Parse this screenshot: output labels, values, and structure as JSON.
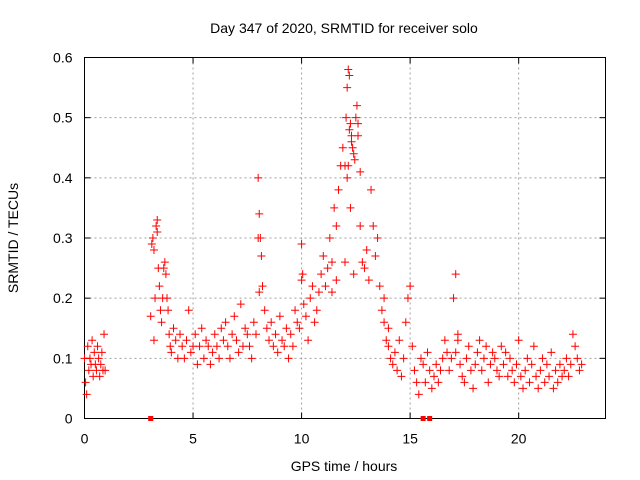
{
  "chart_data": {
    "type": "scatter",
    "title": "Day 347 of 2020, SRMTID for receiver solo",
    "xlabel": "GPS time / hours",
    "ylabel": "SRMTID / TECUs",
    "xlim": [
      0,
      24
    ],
    "ylim": [
      0,
      0.6
    ],
    "xticks": [
      0,
      5,
      10,
      15,
      20
    ],
    "xtick_labels": [
      "0",
      "5",
      "10",
      "15",
      "20"
    ],
    "yticks": [
      0,
      0.1,
      0.2,
      0.3,
      0.4,
      0.5,
      0.6
    ],
    "ytick_labels": [
      "0",
      "0.1",
      "0.2",
      "0.3",
      "0.4",
      "0.5",
      "0.6"
    ],
    "grid": true,
    "marker": "+",
    "color": "#ff0000",
    "series": [
      {
        "name": "SRMTID",
        "x": [
          0.0,
          0.05,
          0.1,
          0.15,
          0.2,
          0.25,
          0.3,
          0.35,
          0.4,
          0.45,
          0.5,
          0.55,
          0.6,
          0.65,
          0.7,
          0.75,
          0.8,
          0.85,
          0.9,
          0.95,
          3.05,
          3.1,
          3.15,
          3.2,
          3.25,
          3.3,
          3.35,
          3.4,
          3.45,
          3.5,
          3.55,
          3.6,
          3.65,
          3.7,
          3.75,
          3.8,
          3.85,
          3.9,
          3.95,
          4.0,
          4.1,
          4.2,
          4.3,
          4.4,
          4.5,
          4.6,
          4.7,
          4.8,
          4.9,
          5.0,
          5.1,
          5.2,
          5.3,
          5.4,
          5.5,
          5.6,
          5.7,
          5.8,
          5.9,
          6.0,
          6.1,
          6.2,
          6.3,
          6.4,
          6.5,
          6.6,
          6.7,
          6.8,
          6.9,
          7.0,
          7.1,
          7.2,
          7.3,
          7.4,
          7.5,
          7.6,
          7.7,
          7.8,
          7.9,
          8.0,
          8.05,
          8.1,
          8.15,
          8.2,
          8.3,
          8.4,
          8.5,
          8.6,
          8.7,
          8.8,
          8.9,
          9.0,
          9.1,
          9.2,
          9.3,
          9.4,
          9.5,
          9.6,
          9.7,
          9.8,
          9.9,
          10.0,
          10.05,
          10.1,
          10.2,
          10.3,
          10.4,
          10.5,
          10.6,
          10.7,
          10.8,
          10.9,
          11.0,
          11.1,
          11.2,
          11.3,
          11.4,
          11.5,
          11.6,
          11.7,
          11.8,
          11.9,
          12.0,
          12.05,
          12.1,
          12.15,
          12.2,
          12.25,
          12.3,
          12.35,
          12.4,
          12.45,
          12.5,
          12.55,
          12.6,
          12.7,
          12.8,
          12.9,
          13.0,
          13.1,
          13.2,
          13.3,
          13.4,
          13.5,
          13.6,
          13.7,
          13.8,
          13.9,
          14.0,
          14.1,
          14.2,
          14.3,
          14.4,
          14.5,
          14.6,
          14.7,
          14.8,
          14.9,
          15.0,
          15.1,
          15.2,
          15.3,
          15.4,
          15.5,
          15.6,
          15.7,
          15.8,
          15.9,
          16.0,
          16.1,
          16.2,
          16.3,
          16.4,
          16.5,
          16.6,
          16.7,
          16.8,
          16.9,
          17.0,
          17.1,
          17.2,
          17.3,
          17.4,
          17.5,
          17.6,
          17.7,
          17.8,
          17.9,
          18.0,
          18.1,
          18.2,
          18.3,
          18.4,
          18.5,
          18.6,
          18.7,
          18.8,
          18.9,
          19.0,
          19.1,
          19.2,
          19.3,
          19.4,
          19.5,
          19.6,
          19.7,
          19.8,
          19.9,
          20.0,
          20.1,
          20.2,
          20.3,
          20.4,
          20.5,
          20.6,
          20.7,
          20.8,
          20.9,
          21.0,
          21.1,
          21.2,
          21.3,
          21.4,
          21.5,
          21.6,
          21.7,
          21.8,
          21.9,
          22.0,
          22.1,
          22.2,
          22.3,
          22.4,
          22.5,
          22.6,
          22.7,
          22.8,
          22.9,
          12.1,
          12.2,
          12.3,
          12.6,
          12.7,
          12.15,
          12.25,
          8.0,
          8.05,
          3.35,
          3.2,
          10.0,
          17.2,
          17.1,
          13.8,
          14.0,
          11.4,
          11.6,
          12.0,
          12.4
        ],
        "y": [
          0.1,
          0.06,
          0.04,
          0.12,
          0.08,
          0.1,
          0.09,
          0.13,
          0.07,
          0.11,
          0.09,
          0.08,
          0.12,
          0.1,
          0.07,
          0.09,
          0.11,
          0.08,
          0.14,
          0.08,
          0.17,
          0.29,
          0.3,
          0.13,
          0.2,
          0.32,
          0.33,
          0.25,
          0.22,
          0.18,
          0.16,
          0.2,
          0.25,
          0.26,
          0.24,
          0.2,
          0.18,
          0.14,
          0.12,
          0.11,
          0.15,
          0.13,
          0.1,
          0.14,
          0.12,
          0.1,
          0.13,
          0.18,
          0.11,
          0.12,
          0.14,
          0.09,
          0.12,
          0.15,
          0.1,
          0.13,
          0.12,
          0.09,
          0.11,
          0.14,
          0.12,
          0.1,
          0.15,
          0.13,
          0.16,
          0.12,
          0.1,
          0.14,
          0.17,
          0.13,
          0.11,
          0.19,
          0.12,
          0.15,
          0.14,
          0.12,
          0.1,
          0.16,
          0.14,
          0.4,
          0.34,
          0.3,
          0.27,
          0.22,
          0.18,
          0.15,
          0.13,
          0.16,
          0.12,
          0.14,
          0.11,
          0.17,
          0.13,
          0.12,
          0.15,
          0.1,
          0.14,
          0.12,
          0.18,
          0.16,
          0.15,
          0.29,
          0.24,
          0.19,
          0.17,
          0.13,
          0.2,
          0.22,
          0.16,
          0.18,
          0.21,
          0.24,
          0.27,
          0.22,
          0.25,
          0.3,
          0.26,
          0.35,
          0.32,
          0.38,
          0.42,
          0.45,
          0.42,
          0.5,
          0.55,
          0.58,
          0.57,
          0.49,
          0.47,
          0.45,
          0.44,
          0.43,
          0.5,
          0.52,
          0.47,
          0.32,
          0.26,
          0.25,
          0.28,
          0.23,
          0.38,
          0.32,
          0.27,
          0.3,
          0.22,
          0.18,
          0.16,
          0.13,
          0.12,
          0.1,
          0.09,
          0.11,
          0.08,
          0.13,
          0.07,
          0.1,
          0.16,
          0.2,
          0.22,
          0.12,
          0.08,
          0.06,
          0.04,
          0.1,
          0.09,
          0.06,
          0.11,
          0.08,
          0.05,
          0.07,
          0.09,
          0.06,
          0.08,
          0.1,
          0.13,
          0.11,
          0.08,
          0.1,
          0.2,
          0.24,
          0.13,
          0.09,
          0.07,
          0.06,
          0.1,
          0.12,
          0.08,
          0.05,
          0.09,
          0.11,
          0.13,
          0.08,
          0.1,
          0.12,
          0.06,
          0.09,
          0.11,
          0.1,
          0.08,
          0.07,
          0.12,
          0.09,
          0.11,
          0.07,
          0.1,
          0.08,
          0.06,
          0.09,
          0.13,
          0.07,
          0.05,
          0.08,
          0.1,
          0.06,
          0.09,
          0.12,
          0.07,
          0.05,
          0.08,
          0.1,
          0.06,
          0.09,
          0.07,
          0.11,
          0.05,
          0.08,
          0.06,
          0.09,
          0.07,
          0.08,
          0.1,
          0.07,
          0.09,
          0.14,
          0.12,
          0.1,
          0.08,
          0.09,
          0.4,
          0.48,
          0.46,
          0.49,
          0.41,
          0.42,
          0.35,
          0.3,
          0.21,
          0.31,
          0.28,
          0.23,
          0.14,
          0.11,
          0.2,
          0.15,
          0.21,
          0.23,
          0.26,
          0.24
        ]
      }
    ],
    "gap_markers_x": [
      3.05,
      15.6,
      15.9
    ],
    "gap_markers_y": [
      0,
      0,
      0
    ]
  }
}
